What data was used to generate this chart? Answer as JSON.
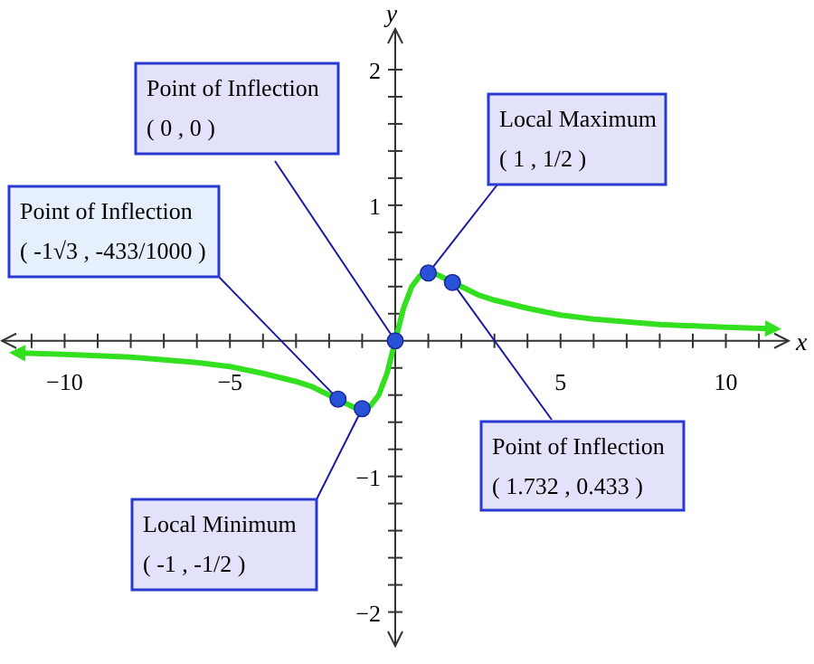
{
  "chart_data": {
    "type": "line",
    "xlabel": "x",
    "ylabel": "y",
    "xlim": [
      -11.9,
      11.9
    ],
    "ylim": [
      -2.25,
      2.3
    ],
    "xticks": [
      {
        "value": -11,
        "label": null
      },
      {
        "value": -10,
        "label": "−10"
      },
      {
        "value": -9,
        "label": null
      },
      {
        "value": -8,
        "label": null
      },
      {
        "value": -7,
        "label": null
      },
      {
        "value": -6,
        "label": null
      },
      {
        "value": -5,
        "label": "−5"
      },
      {
        "value": -4,
        "label": null
      },
      {
        "value": -3,
        "label": null
      },
      {
        "value": -2,
        "label": null
      },
      {
        "value": -1,
        "label": null
      },
      {
        "value": 1,
        "label": null
      },
      {
        "value": 2,
        "label": null
      },
      {
        "value": 3,
        "label": null
      },
      {
        "value": 4,
        "label": null
      },
      5,
      {
        "value": 6,
        "label": null
      },
      {
        "value": 7,
        "label": null
      },
      {
        "value": 8,
        "label": null
      },
      {
        "value": 9,
        "label": null
      },
      10,
      {
        "value": 11,
        "label": null
      }
    ],
    "yticks": [
      {
        "value": -2,
        "label": "−2"
      },
      {
        "value": -1.8,
        "label": null
      },
      {
        "value": -1.6,
        "label": null
      },
      {
        "value": -1.4,
        "label": null
      },
      {
        "value": -1.2,
        "label": null
      },
      {
        "value": -1,
        "label": "−1"
      },
      {
        "value": -0.8,
        "label": null
      },
      {
        "value": -0.6,
        "label": null
      },
      {
        "value": -0.4,
        "label": null
      },
      {
        "value": -0.2,
        "label": null
      },
      {
        "value": 0.2,
        "label": null
      },
      {
        "value": 0.4,
        "label": null
      },
      {
        "value": 0.6,
        "label": null
      },
      {
        "value": 0.8,
        "label": null
      },
      1,
      {
        "value": 1.2,
        "label": null
      },
      {
        "value": 1.4,
        "label": null
      },
      {
        "value": 1.6,
        "label": null
      },
      {
        "value": 1.8,
        "label": null
      },
      2
    ],
    "grid": false,
    "series": [
      {
        "color": "#33e01f",
        "marker": "none",
        "x": [
          -11.3,
          -10,
          -8,
          -6,
          -5,
          -4,
          -3,
          -2.5,
          -2,
          -1.73,
          -1.5,
          -1.25,
          -1,
          -0.75,
          -0.5,
          -0.25,
          0,
          0.25,
          0.5,
          0.75,
          1,
          1.25,
          1.5,
          1.73,
          2,
          2.5,
          3,
          4,
          5,
          6,
          8,
          10,
          11.3
        ],
        "values": [
          -0.09,
          -0.1,
          -0.12,
          -0.16,
          -0.19,
          -0.24,
          -0.3,
          -0.34,
          -0.4,
          -0.43,
          -0.46,
          -0.49,
          -0.5,
          -0.48,
          -0.4,
          -0.24,
          0,
          0.24,
          0.4,
          0.48,
          0.5,
          0.49,
          0.46,
          0.43,
          0.4,
          0.34,
          0.3,
          0.24,
          0.19,
          0.16,
          0.12,
          0.1,
          0.09
        ]
      },
      {
        "type": "scatter",
        "color": "#2a52d8",
        "marker": "circle",
        "x": [
          -1.73,
          -1,
          0,
          1,
          1.73
        ],
        "values": [
          -0.43,
          -0.5,
          0,
          0.5,
          0.43
        ]
      }
    ],
    "annotations": [
      {
        "text": "Point of Inflection\n( 0 , 0 )",
        "x": 0,
        "y": 0
      },
      {
        "text": "Local Maximum\n( 1 , 1/2 )",
        "x": 1,
        "y": 0.5
      },
      {
        "text": "Point of Inflection\n( -1√3 , -433/1000 )",
        "x": -1.73,
        "y": -0.43
      },
      {
        "text": "Local Minimum\n( -1 , -1/2 )",
        "x": -1,
        "y": -0.5
      },
      {
        "text": "Point of Inflection\n( 1.732 , 0.433 )",
        "x": 1.73,
        "y": 0.43
      }
    ]
  }
}
